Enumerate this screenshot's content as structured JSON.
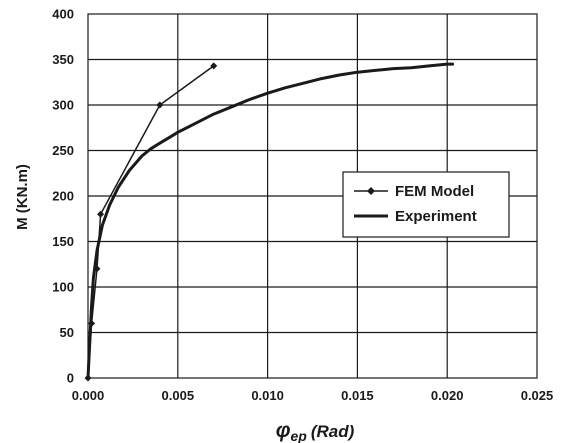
{
  "chart_data": {
    "type": "line",
    "xlabel": {
      "symbol": "φ",
      "subscript": "ep",
      "unit": "(Rad)"
    },
    "ylabel": "M (KN.m)",
    "xlim": [
      0,
      0.025
    ],
    "ylim": [
      0,
      400
    ],
    "x_ticks": [
      "0.000",
      "0.005",
      "0.010",
      "0.015",
      "0.020",
      "0.025"
    ],
    "y_ticks": [
      "0",
      "50",
      "100",
      "150",
      "200",
      "250",
      "300",
      "350",
      "400"
    ],
    "grid": true,
    "legend_position": "middle-right",
    "series": [
      {
        "name": "FEM Model",
        "style": "line-with-diamond-markers",
        "color": "#1a1a1a",
        "x": [
          0.0,
          0.0002,
          0.0005,
          0.0007,
          0.004,
          0.007
        ],
        "y": [
          0,
          60,
          120,
          180,
          300,
          343
        ]
      },
      {
        "name": "Experiment",
        "style": "thick-line",
        "color": "#1a1a1a",
        "x": [
          0.0,
          0.0001,
          0.0002,
          0.0003,
          0.0005,
          0.0008,
          0.0012,
          0.0017,
          0.0023,
          0.003,
          0.0035,
          0.004,
          0.0045,
          0.005,
          0.006,
          0.007,
          0.008,
          0.009,
          0.01,
          0.011,
          0.012,
          0.013,
          0.014,
          0.015,
          0.016,
          0.017,
          0.018,
          0.019,
          0.02,
          0.0203
        ],
        "y": [
          0,
          40,
          80,
          110,
          140,
          168,
          190,
          210,
          228,
          244,
          252,
          258,
          264,
          270,
          280,
          290,
          298,
          306,
          313,
          319,
          324,
          329,
          333,
          336,
          338,
          340,
          341,
          343,
          345,
          345
        ]
      }
    ]
  }
}
